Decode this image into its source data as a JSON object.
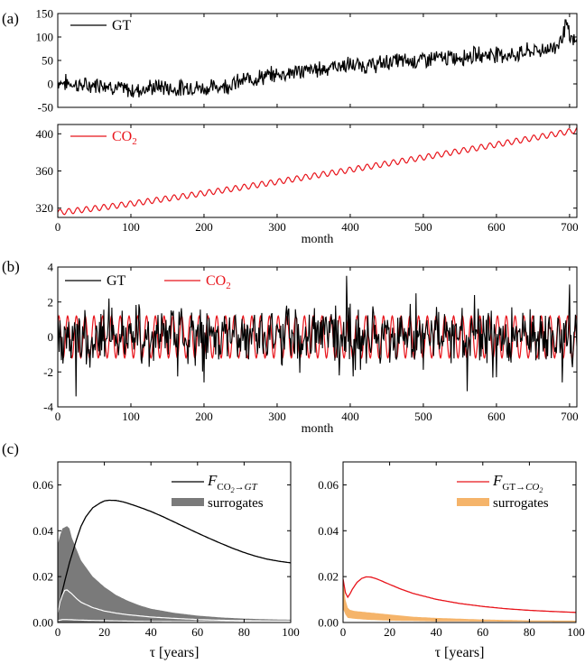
{
  "panel_labels": {
    "a": "(a)",
    "b": "(b)",
    "c": "(c)"
  },
  "colors": {
    "gt": "#000000",
    "co2": "#e8141b",
    "surr_grey": "#7a7a7a",
    "surr_orange": "#f5b46a",
    "white_line": "#ffffff"
  },
  "chart_data": [
    {
      "id": "a1",
      "type": "line",
      "xlim": [
        0,
        710
      ],
      "ylim": [
        -50,
        150
      ],
      "xticks": [
        0,
        100,
        200,
        300,
        400,
        500,
        600,
        700
      ],
      "xtick_labels_visible": false,
      "yticks": [
        -50,
        0,
        50,
        100,
        150
      ],
      "ytick_labels": [
        "-50",
        "0",
        "50",
        "100",
        "150"
      ],
      "legend": [
        {
          "label": "GT",
          "color": "#000000"
        }
      ],
      "series": [
        {
          "name": "GT",
          "color": "#000000",
          "x": [
            0,
            20,
            40,
            60,
            80,
            100,
            120,
            140,
            160,
            180,
            200,
            220,
            240,
            260,
            280,
            300,
            320,
            340,
            360,
            380,
            400,
            420,
            440,
            460,
            480,
            500,
            520,
            540,
            560,
            580,
            600,
            620,
            640,
            660,
            680,
            690,
            695,
            700,
            705,
            710
          ],
          "y": [
            5,
            0,
            -5,
            2,
            -8,
            -15,
            -10,
            -5,
            -12,
            -5,
            -10,
            -5,
            0,
            10,
            15,
            20,
            25,
            28,
            32,
            38,
            40,
            38,
            42,
            50,
            48,
            52,
            55,
            55,
            60,
            62,
            65,
            60,
            68,
            72,
            78,
            100,
            130,
            100,
            90,
            85
          ]
        }
      ]
    },
    {
      "id": "a2",
      "type": "line",
      "xlim": [
        0,
        710
      ],
      "ylim": [
        310,
        410
      ],
      "xticks": [
        0,
        100,
        200,
        300,
        400,
        500,
        600,
        700
      ],
      "xtick_labels": [
        "0",
        "100",
        "200",
        "300",
        "400",
        "500",
        "600",
        "700"
      ],
      "yticks": [
        320,
        360,
        400
      ],
      "ytick_labels": [
        "320",
        "360",
        "400"
      ],
      "xlabel": "month",
      "legend": [
        {
          "label": "CO",
          "sub": "2",
          "color": "#e8141b"
        }
      ],
      "series": [
        {
          "name": "CO2",
          "color": "#e8141b",
          "model": {
            "start": 315.5,
            "end": 404.0,
            "seasonal_amplitude": 3.0,
            "period": 12
          }
        }
      ]
    },
    {
      "id": "b",
      "type": "line",
      "xlim": [
        0,
        710
      ],
      "ylim": [
        -4,
        4
      ],
      "xticks": [
        0,
        100,
        200,
        300,
        400,
        500,
        600,
        700
      ],
      "xtick_labels": [
        "0",
        "100",
        "200",
        "300",
        "400",
        "500",
        "600",
        "700"
      ],
      "yticks": [
        -4,
        -2,
        0,
        2,
        4
      ],
      "ytick_labels": [
        "-4",
        "-2",
        "0",
        "2",
        "4"
      ],
      "xlabel": "month",
      "legend": [
        {
          "label": "GT",
          "color": "#000000"
        },
        {
          "label": "CO",
          "sub": "2",
          "color": "#e8141b"
        }
      ],
      "series": [
        {
          "name": "CO2",
          "color": "#e8141b",
          "model": {
            "amplitude": 1.2,
            "period": 12
          }
        },
        {
          "name": "GT",
          "color": "#000000",
          "model": {
            "std": 0.95
          },
          "peaks": [
            [
              25,
              -3.4
            ],
            [
              70,
              2.2
            ],
            [
              200,
              -2.6
            ],
            [
              395,
              3.5
            ],
            [
              385,
              -2.2
            ],
            [
              560,
              -3.1
            ],
            [
              600,
              -2.3
            ],
            [
              690,
              -2.6
            ],
            [
              700,
              3.0
            ],
            [
              490,
              2.5
            ],
            [
              570,
              2.4
            ]
          ]
        }
      ]
    },
    {
      "id": "c1",
      "type": "area",
      "xlim": [
        0,
        100
      ],
      "ylim": [
        0,
        0.07
      ],
      "xticks": [
        0,
        20,
        40,
        60,
        80,
        100
      ],
      "xtick_labels": [
        "0",
        "20",
        "40",
        "60",
        "80",
        "100"
      ],
      "yticks": [
        0,
        0.02,
        0.04,
        0.06
      ],
      "ytick_labels": [
        "0.00",
        "0.02",
        "0.04",
        "0.06"
      ],
      "xlabel": "τ [years]",
      "legend": [
        {
          "label": "F",
          "sub": "CO2→GT",
          "color": "#000000"
        },
        {
          "label": "surrogates",
          "color": "#7a7a7a"
        }
      ],
      "series": [
        {
          "name": "F CO2→GT",
          "color": "#000000",
          "x": [
            0,
            2,
            5,
            8,
            10,
            12,
            15,
            18,
            20,
            22,
            25,
            28,
            30,
            35,
            40,
            45,
            50,
            55,
            60,
            65,
            70,
            75,
            80,
            85,
            90,
            95,
            100
          ],
          "y": [
            0.004,
            0.014,
            0.026,
            0.036,
            0.042,
            0.046,
            0.05,
            0.052,
            0.053,
            0.0533,
            0.0532,
            0.0526,
            0.052,
            0.0503,
            0.0484,
            0.0462,
            0.0438,
            0.0414,
            0.039,
            0.0367,
            0.0345,
            0.0324,
            0.0305,
            0.0289,
            0.0276,
            0.0267,
            0.026
          ]
        },
        {
          "name": "surrogates upper",
          "color": "#7a7a7a",
          "x": [
            0,
            1,
            2,
            3,
            4,
            5,
            6,
            8,
            10,
            15,
            20,
            25,
            30,
            35,
            40,
            50,
            60,
            70,
            80,
            90,
            100
          ],
          "y": [
            0.034,
            0.038,
            0.041,
            0.0415,
            0.042,
            0.041,
            0.037,
            0.032,
            0.027,
            0.02,
            0.0155,
            0.012,
            0.0095,
            0.0075,
            0.006,
            0.0042,
            0.003,
            0.0022,
            0.0017,
            0.0014,
            0.0012
          ]
        },
        {
          "name": "surrogates lower",
          "color": "#7a7a7a",
          "x": [
            0,
            100
          ],
          "y": [
            0,
            0
          ]
        },
        {
          "name": "surrogates mean",
          "color": "#ffffff",
          "x": [
            0,
            1,
            2,
            3,
            4,
            6,
            8,
            10,
            15,
            20,
            25,
            30,
            40,
            50,
            60,
            70,
            80,
            90,
            100
          ],
          "y": [
            0.004,
            0.009,
            0.012,
            0.014,
            0.0142,
            0.0125,
            0.0105,
            0.0088,
            0.0065,
            0.005,
            0.0041,
            0.0034,
            0.0024,
            0.0018,
            0.0013,
            0.001,
            0.0008,
            0.0007,
            0.0006
          ]
        },
        {
          "name": "surrogates low",
          "color": "#ffffff",
          "x": [
            0,
            2,
            4,
            8,
            15,
            30,
            50,
            100
          ],
          "y": [
            0.0008,
            0.0013,
            0.0013,
            0.0011,
            0.0009,
            0.0006,
            0.0004,
            0.0003
          ]
        }
      ]
    },
    {
      "id": "c2",
      "type": "area",
      "xlim": [
        0,
        100
      ],
      "ylim": [
        0,
        0.07
      ],
      "xticks": [
        0,
        20,
        40,
        60,
        80,
        100
      ],
      "xtick_labels": [
        "0",
        "20",
        "40",
        "60",
        "80",
        "100"
      ],
      "yticks": [
        0,
        0.02,
        0.04,
        0.06
      ],
      "ytick_labels": [
        "0.00",
        "0.02",
        "0.04",
        "0.06"
      ],
      "xlabel": "τ [years]",
      "legend": [
        {
          "label": "F",
          "sub": "GT→CO2",
          "color": "#e8141b"
        },
        {
          "label": "surrogates",
          "color": "#f5b46a"
        }
      ],
      "series": [
        {
          "name": "F GT→CO2",
          "color": "#e8141b",
          "x": [
            0,
            1,
            2,
            3,
            4,
            5,
            6,
            8,
            10,
            12,
            15,
            20,
            25,
            30,
            40,
            50,
            60,
            70,
            80,
            90,
            100
          ],
          "y": [
            0.019,
            0.013,
            0.011,
            0.0125,
            0.0145,
            0.016,
            0.0175,
            0.0192,
            0.0199,
            0.0198,
            0.0188,
            0.0166,
            0.0145,
            0.0127,
            0.0101,
            0.0083,
            0.007,
            0.006,
            0.0053,
            0.0048,
            0.0044
          ]
        },
        {
          "name": "surrogates upper",
          "color": "#f5b46a",
          "x": [
            0,
            1,
            2,
            3,
            5,
            10,
            15,
            20,
            30,
            40,
            60,
            80,
            100
          ],
          "y": [
            0.019,
            0.01,
            0.0065,
            0.0055,
            0.005,
            0.0045,
            0.004,
            0.0035,
            0.0025,
            0.002,
            0.0013,
            0.0009,
            0.0008
          ]
        },
        {
          "name": "surrogates lower",
          "color": "#f5b46a",
          "x": [
            0,
            1,
            2,
            5,
            10,
            20,
            40,
            100
          ],
          "y": [
            0.006,
            0.0035,
            0.002,
            0.0016,
            0.0012,
            0.0008,
            0.0005,
            0.0003
          ]
        }
      ]
    }
  ]
}
